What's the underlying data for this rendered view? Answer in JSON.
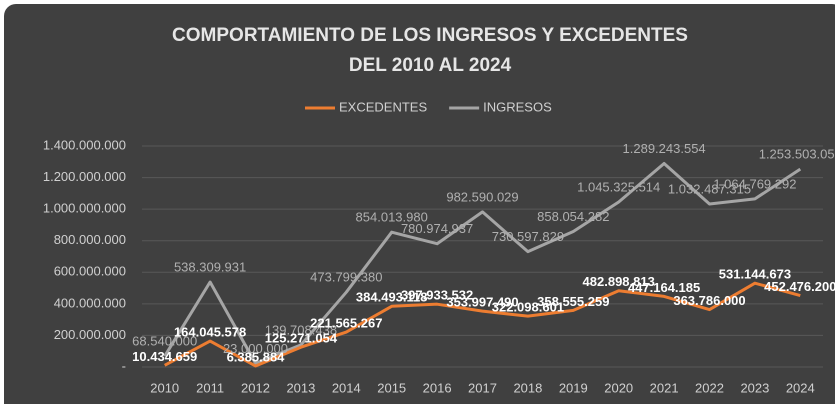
{
  "chart_data": {
    "type": "line",
    "title": [
      "COMPORTAMIENTO DE LOS INGRESOS Y EXCEDENTES",
      "DEL 2010 AL 2024"
    ],
    "categories": [
      "2010",
      "2011",
      "2012",
      "2013",
      "2014",
      "2015",
      "2016",
      "2017",
      "2018",
      "2019",
      "2020",
      "2021",
      "2022",
      "2023",
      "2024"
    ],
    "series": [
      {
        "name": "EXCEDENTES",
        "color": "#ed7d31",
        "values": [
          10434659,
          164045578,
          6385884,
          125271054,
          221565267,
          384493118,
          397933532,
          353997490,
          322098601,
          358555259,
          482898813,
          447164185,
          363786000,
          531144673,
          452476200
        ],
        "value_labels": [
          "10.434.659",
          "164.045.578",
          "6.385.884",
          "125.271.054",
          "221.565.267",
          "384.493.118",
          "397.933.532",
          "353.997.490",
          "322.098.601",
          "358.555.259",
          "482.898.813",
          "447.164.185",
          "363.786.000",
          "531.144.673",
          "452.476.200"
        ]
      },
      {
        "name": "INGRESOS",
        "color": "#a5a5a5",
        "values": [
          68540000,
          538309931,
          23000000,
          139708438,
          473799380,
          854013980,
          780974937,
          982590029,
          730597829,
          858054282,
          1045325514,
          1289243554,
          1032487315,
          1064769292,
          1253503050
        ],
        "value_labels": [
          "68.540.000",
          "538.309.931",
          "23.000.000",
          "139.708.438",
          "473.799.380",
          "854.013.980",
          "780.974.937",
          "982.590.029",
          "730.597.829",
          "858.054.282",
          "1.045.325.514",
          "1.289.243.554",
          "1.032.487.315",
          "1.064.769.292",
          "1.253.503.050"
        ]
      }
    ],
    "ylim": [
      0,
      1400000000
    ],
    "yticks": [
      {
        "value": 0,
        "label": "-"
      },
      {
        "value": 200000000,
        "label": "200.000.000"
      },
      {
        "value": 400000000,
        "label": "400.000.000"
      },
      {
        "value": 600000000,
        "label": "600.000.000"
      },
      {
        "value": 800000000,
        "label": "800.000.000"
      },
      {
        "value": 1000000000,
        "label": "1.000.000.000"
      },
      {
        "value": 1200000000,
        "label": "1.200.000.000"
      },
      {
        "value": 1400000000,
        "label": "1.400.000.000"
      }
    ],
    "grid": true,
    "legend": "top"
  }
}
